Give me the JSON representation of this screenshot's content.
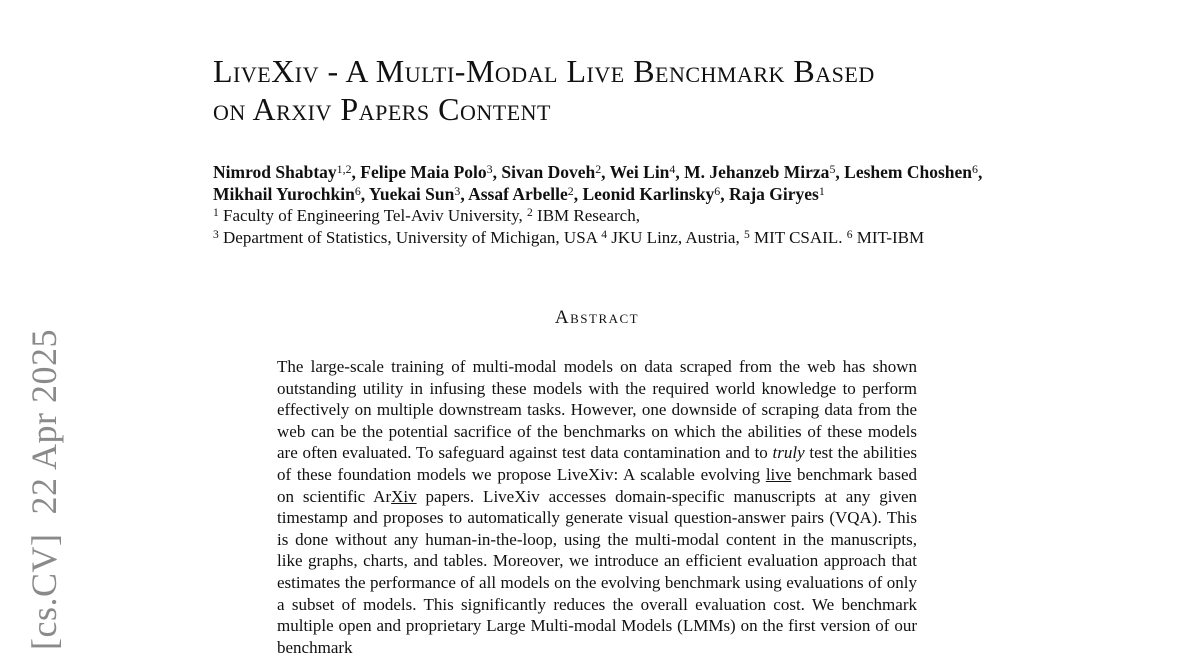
{
  "page": {
    "background": "#ffffff",
    "text_color": "#111111"
  },
  "watermark": {
    "text": "[cs.CV]  22 Apr 2025",
    "color": "#8a8a8a"
  },
  "title": {
    "line1": "LiveXiv - A Multi-Modal Live Benchmark Based",
    "line2": "on Arxiv Papers Content"
  },
  "authors": {
    "line1": [
      {
        "t": "Nimrod Shabtay"
      },
      {
        "t": "1,2",
        "sup": true
      },
      {
        "t": ", Felipe Maia Polo"
      },
      {
        "t": "3",
        "sup": true
      },
      {
        "t": ", Sivan Doveh"
      },
      {
        "t": "2",
        "sup": true
      },
      {
        "t": ", Wei Lin"
      },
      {
        "t": "4",
        "sup": true
      },
      {
        "t": ", M. Jehanzeb Mirza"
      },
      {
        "t": "5",
        "sup": true
      },
      {
        "t": ", Leshem Choshen"
      },
      {
        "t": "6",
        "sup": true
      },
      {
        "t": ","
      }
    ],
    "line2": [
      {
        "t": "Mikhail Yurochkin"
      },
      {
        "t": "6",
        "sup": true
      },
      {
        "t": ", Yuekai Sun"
      },
      {
        "t": "3",
        "sup": true
      },
      {
        "t": ", Assaf Arbelle"
      },
      {
        "t": "2",
        "sup": true
      },
      {
        "t": ", Leonid Karlinsky"
      },
      {
        "t": "6",
        "sup": true
      },
      {
        "t": ", Raja Giryes"
      },
      {
        "t": "1",
        "sup": true
      }
    ]
  },
  "affiliations": {
    "line1": [
      {
        "t": "1",
        "sup": true
      },
      {
        "t": " Faculty of Engineering Tel-Aviv University, "
      },
      {
        "t": "2",
        "sup": true
      },
      {
        "t": " IBM Research,"
      }
    ],
    "line2": [
      {
        "t": "3",
        "sup": true
      },
      {
        "t": " Department of Statistics, University of Michigan, USA "
      },
      {
        "t": "4",
        "sup": true
      },
      {
        "t": " JKU Linz, Austria, "
      },
      {
        "t": "5",
        "sup": true
      },
      {
        "t": " MIT CSAIL. "
      },
      {
        "t": "6",
        "sup": true
      },
      {
        "t": " MIT-IBM"
      }
    ]
  },
  "abstract": {
    "heading": "Abstract",
    "body": [
      {
        "t": "The large-scale training of multi-modal models on data scraped from the web has shown outstanding utility in infusing these models with the required world knowledge to perform effectively on multiple downstream tasks. However, one downside of scraping data from the web can be the potential sacrifice of the benchmarks on which the abilities of these models are often evaluated. To safeguard against test data contamination and to "
      },
      {
        "t": "truly",
        "i": true
      },
      {
        "t": " test the abilities of these foundation models we propose LiveXiv: A scalable evolving "
      },
      {
        "t": "live",
        "u": true
      },
      {
        "t": " benchmark based on scientific Ar"
      },
      {
        "t": "Xiv",
        "u": true
      },
      {
        "t": " papers. LiveXiv accesses domain-specific manuscripts at any given timestamp and proposes to automatically generate visual question-answer pairs (VQA). This is done without any human-in-the-loop, using the multi-modal content in the manuscripts, like graphs, charts, and tables. Moreover, we introduce an efficient evaluation approach that estimates the performance of all models on the evolving benchmark using evaluations of only a subset of models. This significantly reduces the overall evaluation cost. We benchmark multiple open and proprietary Large Multi-modal Models (LMMs) on the first version of our benchmark"
      }
    ]
  }
}
